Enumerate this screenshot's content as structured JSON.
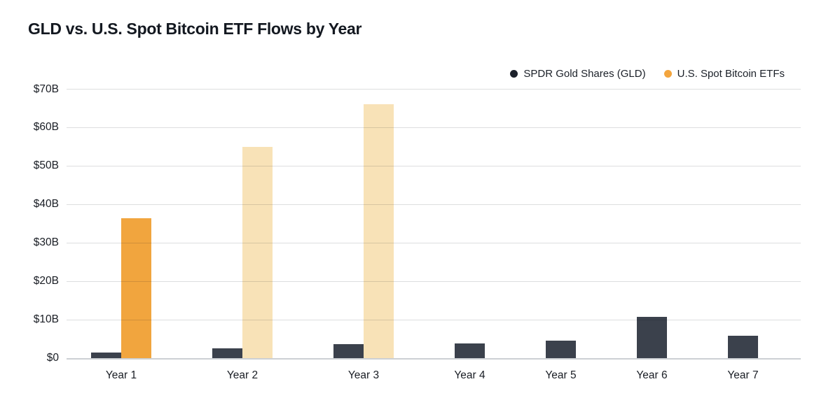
{
  "title": "GLD vs. U.S. Spot Bitcoin ETF Flows by Year",
  "legend": [
    {
      "label": "SPDR Gold Shares (GLD)",
      "marker_color": "#1c212b"
    },
    {
      "label": "U.S. Spot Bitcoin ETFs",
      "marker_color": "#f3a53e"
    }
  ],
  "colors": {
    "gld_bar": "#3b414c",
    "btc_bar_actual": "#f1a53e",
    "btc_bar_projected": "#f8e2b7",
    "gridline": "#d9dadb",
    "axis_text": "#191d24",
    "title_text": "#131820",
    "background": "#ffffff"
  },
  "chart_data": {
    "type": "bar",
    "title": "GLD vs. U.S. Spot Bitcoin ETF Flows by Year",
    "categories": [
      "Year 1",
      "Year 2",
      "Year 3",
      "Year 4",
      "Year 5",
      "Year 6",
      "Year 7"
    ],
    "series": [
      {
        "key": "gld",
        "name": "SPDR Gold Shares (GLD)",
        "color": "#3b414c",
        "values": [
          1.4,
          2.5,
          3.6,
          3.9,
          4.5,
          10.8,
          5.8
        ]
      },
      {
        "key": "btc",
        "name": "U.S. Spot Bitcoin ETFs",
        "color": "#f1a53e",
        "muted_color": "#f8e2b7",
        "muted_bars": [
          false,
          true,
          true,
          false,
          false,
          false,
          false
        ],
        "values": [
          36.5,
          55,
          66,
          null,
          null,
          null,
          null
        ]
      }
    ],
    "y_tick_values": [
      0,
      10,
      20,
      30,
      40,
      50,
      60,
      70
    ],
    "y_tick_labels": [
      "$0",
      "$10B",
      "$20B",
      "$30B",
      "$40B",
      "$50B",
      "$60B",
      "$70B"
    ],
    "ylim": [
      0,
      70
    ],
    "xlabel": "",
    "ylabel": "",
    "grid": "horizontal",
    "legend_position": "top-right"
  }
}
